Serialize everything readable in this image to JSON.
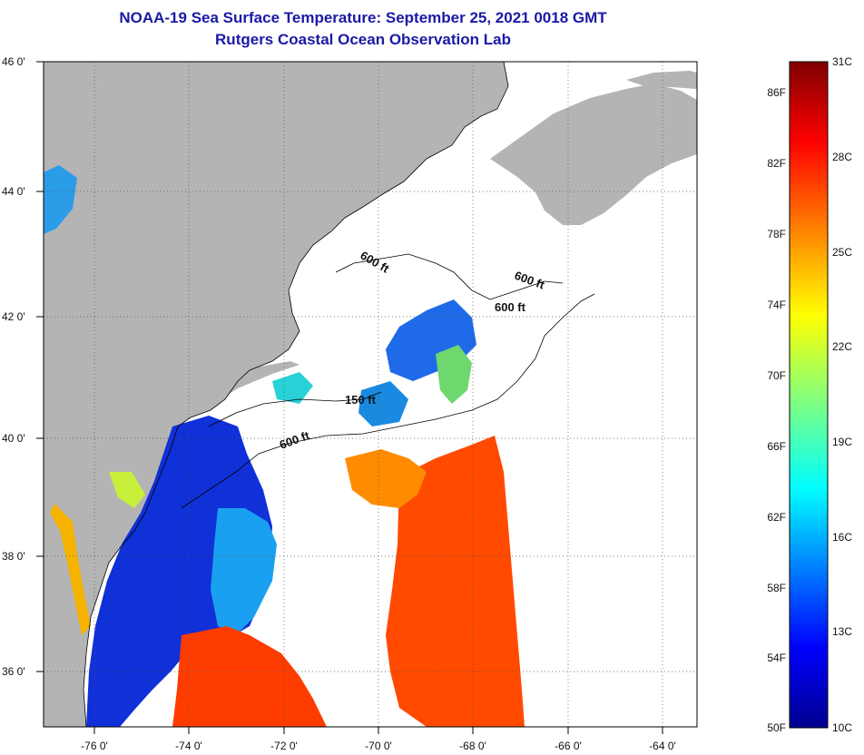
{
  "title": {
    "line1": "NOAA-19 Sea Surface Temperature:  September 25, 2021 0018 GMT",
    "line2": "Rutgers Coastal Ocean Observation Lab"
  },
  "map": {
    "lat_range": [
      35,
      46
    ],
    "lon_range": [
      -77,
      -63
    ],
    "lat_ticks": [
      "46 0'",
      "44 0'",
      "42 0'",
      "40 0'",
      "38 0'",
      "36 0'"
    ],
    "lon_ticks": [
      "-76 0'",
      "-74 0'",
      "-72 0'",
      "-70 0'",
      "-68 0'",
      "-66 0'",
      "-64 0'"
    ],
    "contour_labels": [
      "600 ft",
      "600 ft",
      "600 ft",
      "150 ft",
      "600 ft"
    ],
    "colors": {
      "land": "#b4b4b4",
      "no_data": "#ffffff",
      "grid": "#555555"
    }
  },
  "colorbar": {
    "f_labels": [
      "86F",
      "82F",
      "78F",
      "74F",
      "70F",
      "66F",
      "62F",
      "58F",
      "54F",
      "50F"
    ],
    "c_labels": [
      "31C",
      "28C",
      "25C",
      "22C",
      "19C",
      "16C",
      "13C",
      "10C"
    ],
    "range_c": [
      10,
      31
    ],
    "colormap": "jet"
  }
}
